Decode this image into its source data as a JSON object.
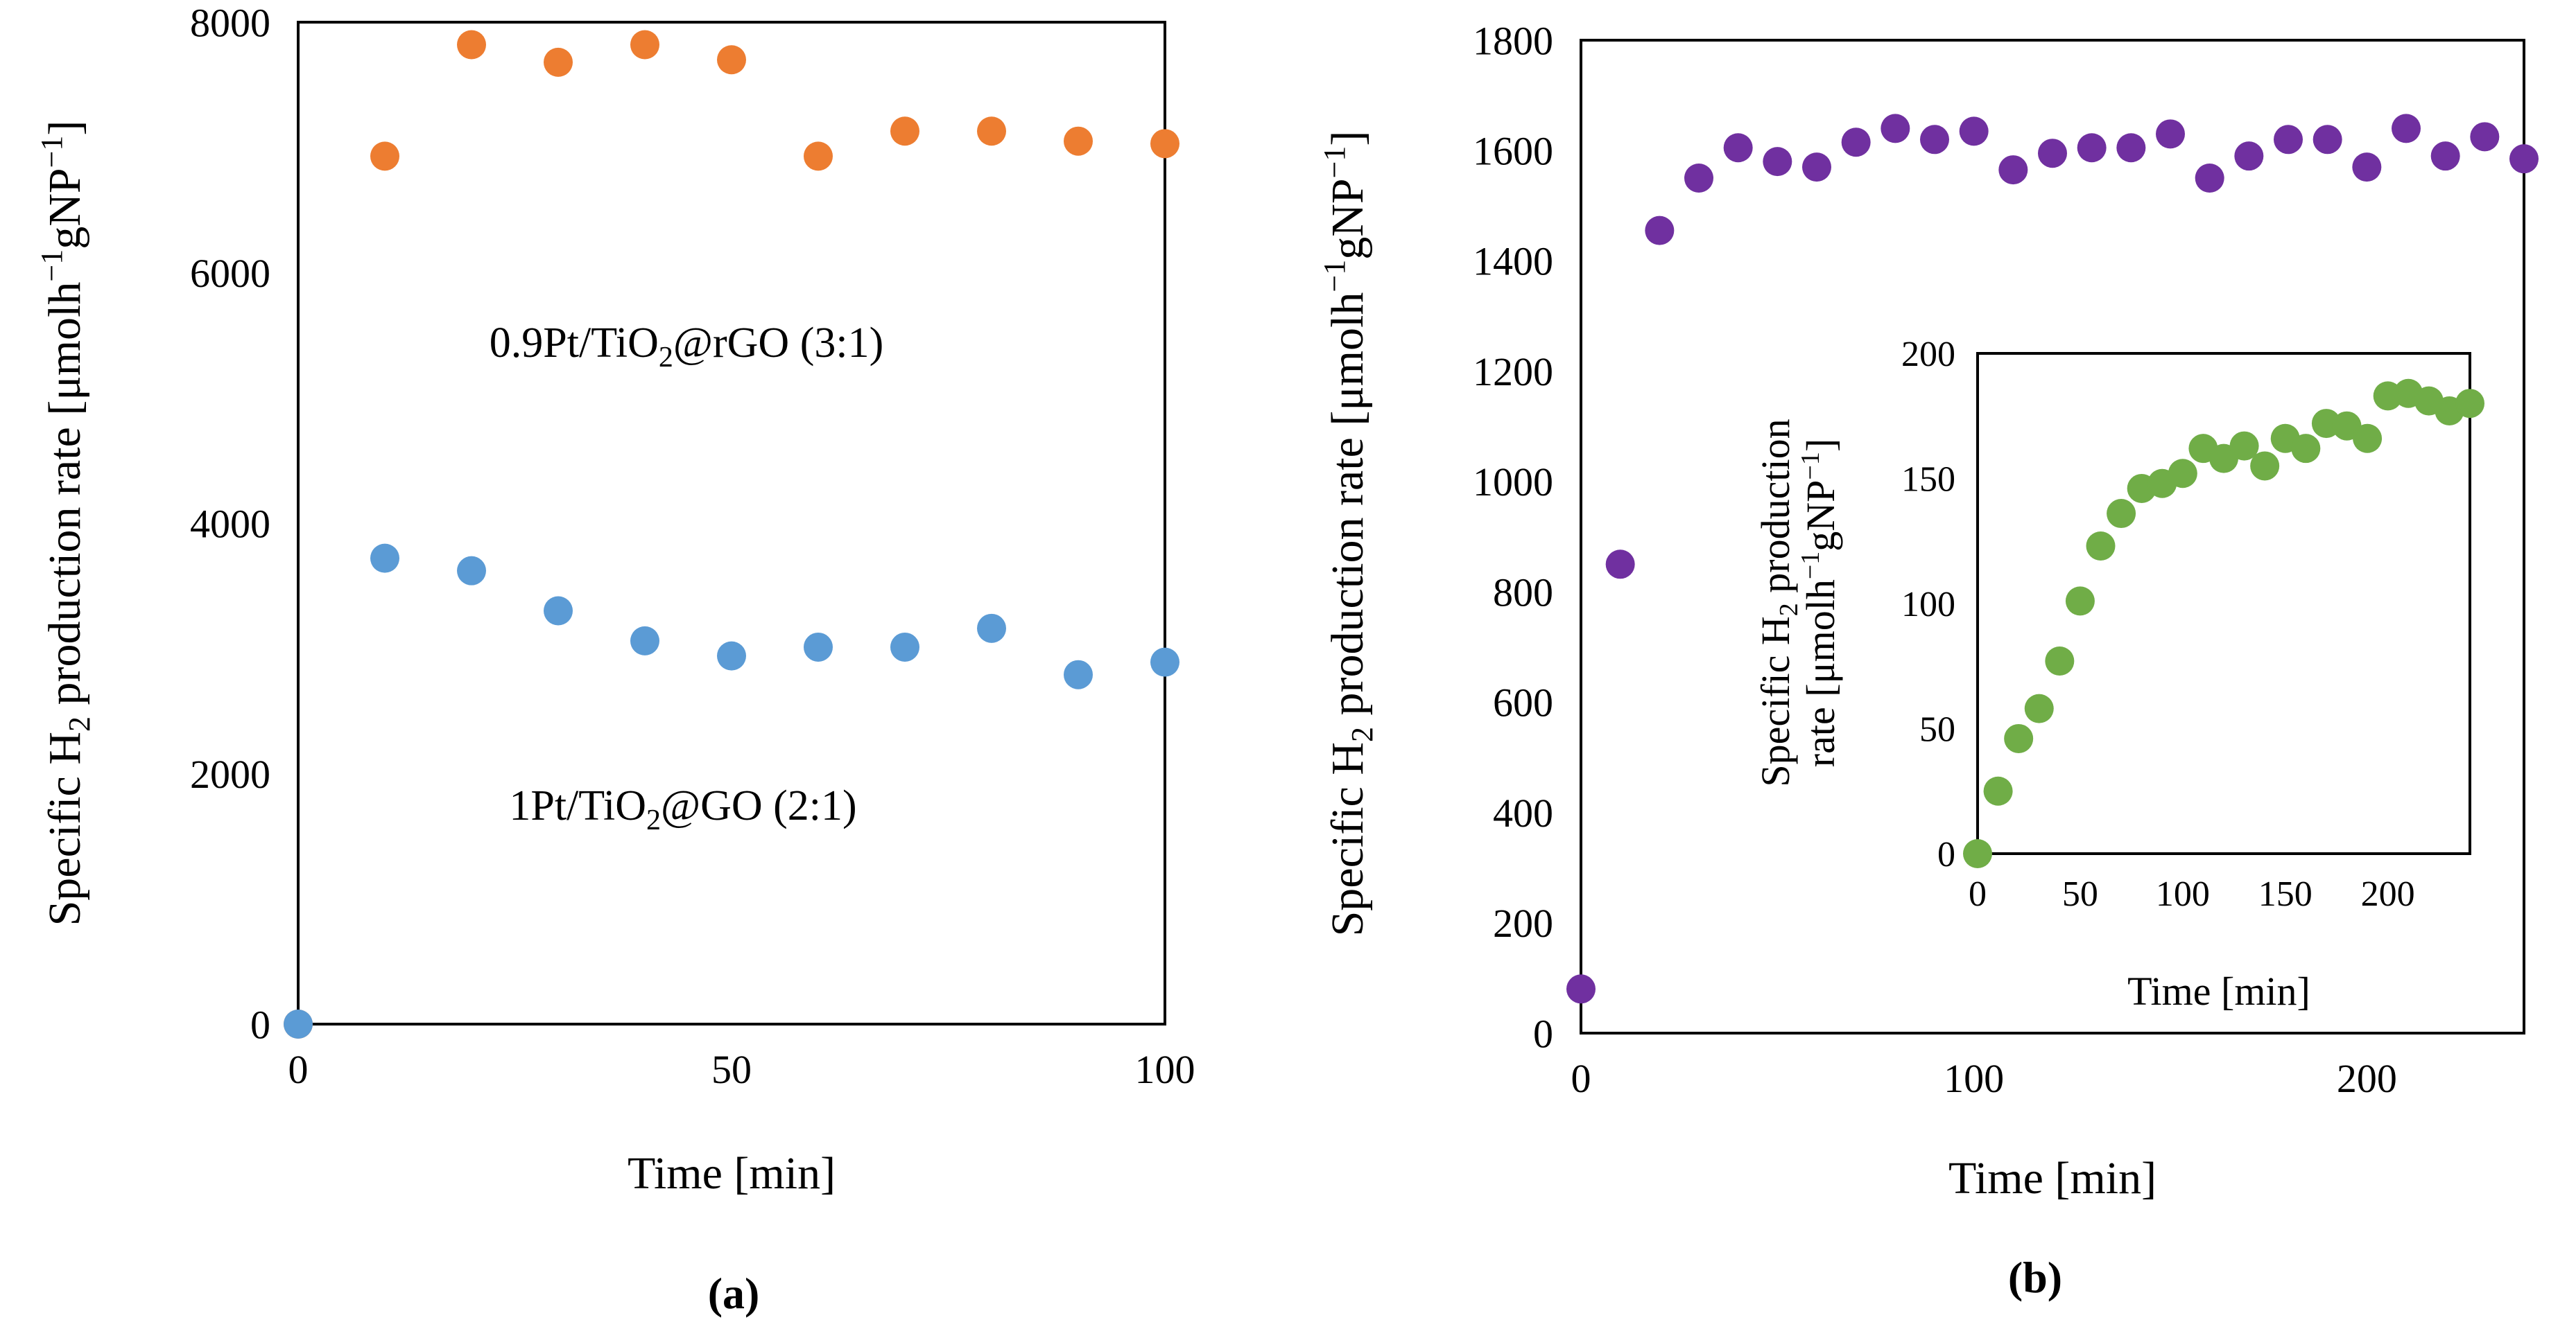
{
  "chart_data": [
    {
      "type": "scatter",
      "panel_label": "(a)",
      "xlabel": "Time [min]",
      "ylabel": {
        "prefix": "Specific H",
        "sub": "2",
        "middle": " production rate [μmolh",
        "sup1": "−1",
        "mid2": "gNP",
        "sup2": "−1",
        "suffix": "]"
      },
      "xlim": [
        0,
        100
      ],
      "ylim": [
        0,
        8000
      ],
      "xticks": [
        0,
        50,
        100
      ],
      "yticks": [
        0,
        2000,
        4000,
        6000,
        8000
      ],
      "grid": false,
      "series": [
        {
          "name": "0.9Pt/TiO2@rGO (3:1)",
          "label": {
            "a": "0.9Pt/TiO",
            "sub": "2",
            "b": "@rGO (3:1)"
          },
          "color": "#ed7d31",
          "x": [
            0,
            10,
            20,
            30,
            40,
            50,
            60,
            70,
            80,
            90,
            100
          ],
          "y": [
            0,
            6930,
            7820,
            7680,
            7820,
            7700,
            6930,
            7130,
            7130,
            7050,
            7030
          ]
        },
        {
          "name": "1Pt/TiO2@GO (2:1)",
          "label": {
            "a": "1Pt/TiO",
            "sub": "2",
            "b": "@GO (2:1)"
          },
          "color": "#5b9bd5",
          "x": [
            0,
            10,
            20,
            30,
            40,
            50,
            60,
            70,
            80,
            90,
            100
          ],
          "y": [
            0,
            3720,
            3620,
            3300,
            3060,
            2940,
            3010,
            3010,
            3160,
            2790,
            2890
          ]
        }
      ]
    },
    {
      "type": "scatter",
      "panel_label": "(b)",
      "xlabel": "Time [min]",
      "ylabel": {
        "prefix": "Specific H",
        "sub": "2",
        "middle": " production rate [μmolh",
        "sup1": "−1",
        "mid2": "gNP",
        "sup2": "−1",
        "suffix": "]"
      },
      "xlim": [
        0,
        240
      ],
      "ylim": [
        0,
        1800
      ],
      "xticks": [
        0,
        100,
        200
      ],
      "yticks": [
        0,
        200,
        400,
        600,
        800,
        1000,
        1200,
        1400,
        1600,
        1800
      ],
      "grid": false,
      "series": [
        {
          "name": "",
          "color": "#7030a0",
          "x": [
            0,
            10,
            20,
            30,
            40,
            50,
            60,
            70,
            80,
            90,
            100,
            110,
            120,
            130,
            140,
            150,
            160,
            170,
            180,
            190,
            200,
            210,
            220,
            230,
            240
          ],
          "y": [
            80,
            850,
            1455,
            1550,
            1605,
            1580,
            1570,
            1615,
            1640,
            1620,
            1635,
            1565,
            1595,
            1605,
            1605,
            1630,
            1550,
            1590,
            1620,
            1620,
            1570,
            1640,
            1590,
            1625,
            1585
          ]
        }
      ],
      "inset": {
        "type": "scatter",
        "xlabel": "Time [min]",
        "ylabel_line1": {
          "prefix": "Specific H",
          "sub": "2",
          "suffix": " production"
        },
        "ylabel_line2": {
          "prefix": "rate [μmolh",
          "sup1": "−1",
          "mid": "gNP",
          "sup2": "−1",
          "suffix": "]"
        },
        "xlim": [
          0,
          240
        ],
        "ylim": [
          0,
          200
        ],
        "xticks": [
          0,
          50,
          100,
          150,
          200
        ],
        "yticks": [
          0,
          50,
          100,
          150,
          200
        ],
        "series": [
          {
            "name": "",
            "color": "#70ad47",
            "x": [
              0,
              10,
              20,
              30,
              40,
              50,
              60,
              70,
              80,
              90,
              100,
              110,
              120,
              130,
              140,
              150,
              160,
              170,
              180,
              190,
              200,
              210,
              220,
              230,
              240
            ],
            "y": [
              0,
              25,
              46,
              58,
              77,
              101,
              123,
              136,
              146,
              148,
              152,
              162,
              158,
              163,
              155,
              166,
              162,
              172,
              171,
              166,
              183,
              184,
              181,
              177,
              180
            ]
          }
        ]
      }
    }
  ]
}
